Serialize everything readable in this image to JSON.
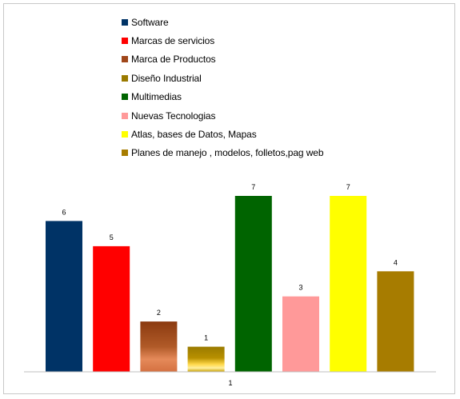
{
  "chart_data": {
    "type": "bar",
    "categories": [
      "1"
    ],
    "ylim": [
      0,
      7
    ],
    "grid": false,
    "legend_position": "top",
    "series": [
      {
        "name": "Software",
        "values": [
          6
        ],
        "color": "#003366"
      },
      {
        "name": "Marcas de servicios",
        "values": [
          5
        ],
        "color": "#ff0000"
      },
      {
        "name": "Marca de Productos",
        "values": [
          2
        ],
        "color": "#a0471a"
      },
      {
        "name": "Diseño Industrial",
        "values": [
          1
        ],
        "color": "#9a7a00"
      },
      {
        "name": "Multimedias",
        "values": [
          7
        ],
        "color": "#006400"
      },
      {
        "name": "Nuevas Tecnologias",
        "values": [
          3
        ],
        "color": "#ff9999"
      },
      {
        "name": "Atlas, bases de Datos, Mapas",
        "values": [
          7
        ],
        "color": "#ffff00"
      },
      {
        "name": "Planes de manejo , modelos, folletos,pag web",
        "values": [
          4
        ],
        "color": "#a77c00"
      }
    ]
  }
}
